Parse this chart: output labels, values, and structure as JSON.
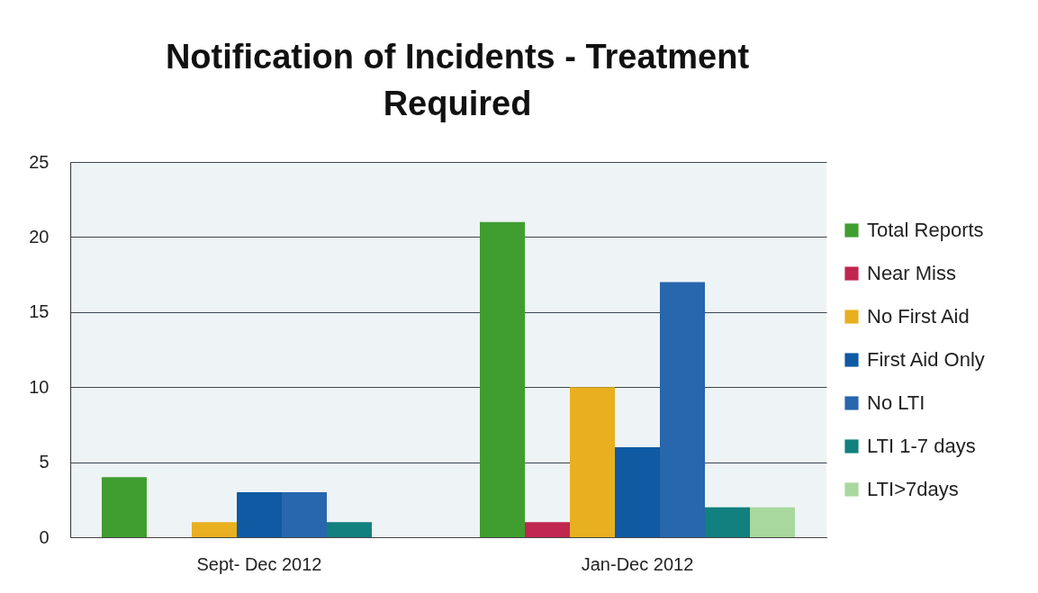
{
  "chart_data": {
    "type": "bar",
    "title": "Notification of Incidents - Treatment Required",
    "categories": [
      "Sept- Dec 2012",
      "Jan-Dec 2012"
    ],
    "series": [
      {
        "name": "Total Reports",
        "color": "#3f9e2f",
        "values": [
          4,
          21
        ]
      },
      {
        "name": "Near Miss",
        "color": "#c0264f",
        "values": [
          null,
          1
        ]
      },
      {
        "name": "No First Aid",
        "color": "#e8b020",
        "values": [
          1,
          10
        ]
      },
      {
        "name": "First Aid Only",
        "color": "#0f5aa3",
        "values": [
          3,
          6
        ]
      },
      {
        "name": "No LTI",
        "color": "#2866ad",
        "values": [
          3,
          17
        ]
      },
      {
        "name": "LTI 1-7 days",
        "color": "#12807e",
        "values": [
          1,
          2
        ]
      },
      {
        "name": "LTI>7days",
        "color": "#a8d89e",
        "values": [
          null,
          2
        ]
      }
    ],
    "ylim": [
      0,
      25
    ],
    "yticks": [
      0,
      5,
      10,
      15,
      20,
      25
    ],
    "grid": "y",
    "legend": "right"
  }
}
